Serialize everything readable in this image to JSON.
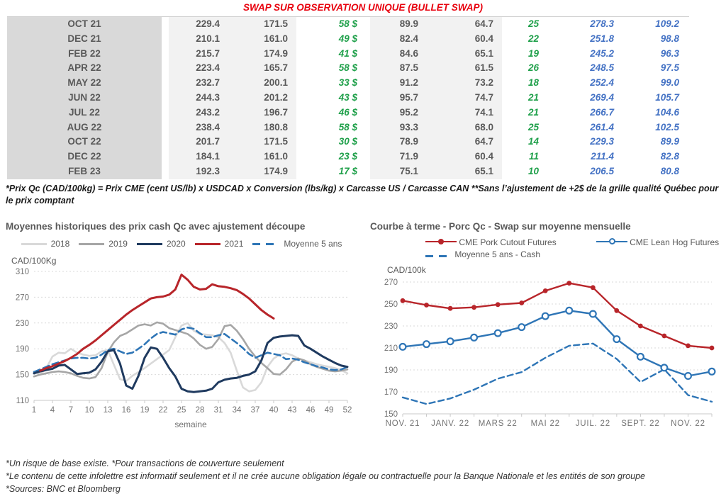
{
  "header": {
    "title": "SWAP SUR OBSERVATION UNIQUE (BULLET SWAP)"
  },
  "colors": {
    "title_red": "#e8000d",
    "table_green": "#1fa04a",
    "table_blue": "#4472c4",
    "row_label_bg": "#d9d9d9",
    "num_block_bg": "#f2f2f2",
    "line_2018": "#d9d9d9",
    "line_2019": "#a6a6a6",
    "line_2020": "#1f3a5f",
    "line_2021": "#b8252a",
    "line_blue": "#2e75b6",
    "grid": "#d9d9d9",
    "axis_text": "#737373"
  },
  "table": {
    "rows": [
      [
        "OCT 21",
        "229.4",
        "171.5",
        "58 $",
        "89.9",
        "64.7",
        "25",
        "278.3",
        "109.2"
      ],
      [
        "DEC 21",
        "210.1",
        "161.0",
        "49 $",
        "82.4",
        "60.4",
        "22",
        "251.8",
        "98.8"
      ],
      [
        "FEB 22",
        "215.7",
        "174.9",
        "41 $",
        "84.6",
        "65.1",
        "19",
        "245.2",
        "96.3"
      ],
      [
        "APR 22",
        "223.4",
        "165.7",
        "58 $",
        "87.5",
        "61.5",
        "26",
        "248.5",
        "97.5"
      ],
      [
        "MAY 22",
        "232.7",
        "200.1",
        "33 $",
        "91.2",
        "73.2",
        "18",
        "252.4",
        "99.0"
      ],
      [
        "JUN 22",
        "244.3",
        "201.2",
        "43 $",
        "95.7",
        "74.7",
        "21",
        "269.4",
        "105.7"
      ],
      [
        "JUL 22",
        "243.2",
        "196.7",
        "46 $",
        "95.2",
        "74.1",
        "21",
        "266.7",
        "104.6"
      ],
      [
        "AUG 22",
        "238.4",
        "180.8",
        "58 $",
        "93.3",
        "68.0",
        "25",
        "261.4",
        "102.5"
      ],
      [
        "OCT 22",
        "201.7",
        "171.5",
        "30 $",
        "78.9",
        "64.7",
        "14",
        "229.3",
        "89.9"
      ],
      [
        "DEC 22",
        "184.1",
        "161.0",
        "23 $",
        "71.9",
        "60.4",
        "11",
        "211.4",
        "82.8"
      ],
      [
        "FEB 23",
        "192.3",
        "174.9",
        "17 $",
        "75.1",
        "65.1",
        "10",
        "206.5",
        "80.8"
      ]
    ],
    "footnote": "*Prix Qc (CAD/100kg) = Prix CME (cent US/lb) x USDCAD x Conversion (lbs/kg) x Carcasse US / Carcasse CAN **Sans l’ajustement de +2$ de la grille qualité Québec pour le prix comptant"
  },
  "chart_data": [
    {
      "type": "line",
      "title": "Moyennes historiques des prix cash Qc avec ajustement découpe",
      "unit": "CAD/100Kg",
      "xlabel": "semaine",
      "ylim": [
        110,
        310
      ],
      "yticks": [
        110,
        150,
        190,
        230,
        270,
        310
      ],
      "xticks": [
        1,
        4,
        7,
        10,
        13,
        16,
        19,
        22,
        25,
        28,
        31,
        34,
        37,
        40,
        43,
        46,
        49,
        52
      ],
      "series": [
        {
          "name": "2018",
          "color_key": "line_2018",
          "x_start": 1,
          "values": [
            155,
            150,
            160,
            178,
            184,
            183,
            190,
            184,
            181,
            179,
            180,
            186,
            188,
            165,
            143,
            140,
            148,
            154,
            160,
            167,
            174,
            181,
            188,
            208,
            226,
            230,
            218,
            213,
            212,
            211,
            208,
            199,
            184,
            156,
            130,
            124,
            126,
            138,
            162,
            175,
            181,
            183,
            180,
            175,
            172,
            169,
            166,
            164,
            162,
            160,
            157,
            152
          ]
        },
        {
          "name": "2019",
          "color_key": "line_2019",
          "x_start": 1,
          "values": [
            147,
            150,
            152,
            154,
            155,
            154,
            152,
            148,
            145,
            144,
            146,
            160,
            185,
            200,
            210,
            214,
            220,
            226,
            228,
            226,
            231,
            229,
            222,
            219,
            216,
            213,
            206,
            196,
            190,
            193,
            205,
            225,
            227,
            218,
            205,
            190,
            178,
            168,
            160,
            151,
            150,
            158,
            170,
            175,
            172,
            166,
            162,
            159,
            156,
            155,
            156,
            158
          ]
        },
        {
          "name": "2020",
          "color_key": "line_2020",
          "x_start": 1,
          "values": [
            152,
            155,
            157,
            159,
            164,
            165,
            158,
            151,
            152,
            153,
            158,
            170,
            186,
            188,
            167,
            133,
            128,
            148,
            176,
            192,
            190,
            176,
            160,
            147,
            128,
            124,
            123,
            124,
            125,
            128,
            138,
            142,
            144,
            145,
            148,
            150,
            155,
            172,
            199,
            207,
            209,
            210,
            211,
            210,
            195,
            190,
            184,
            178,
            173,
            168,
            164,
            162
          ]
        },
        {
          "name": "2021",
          "color_key": "line_2021",
          "x_start": 2,
          "values": [
            156,
            160,
            163,
            167,
            171,
            176,
            182,
            190,
            196,
            203,
            211,
            219,
            227,
            235,
            243,
            250,
            256,
            262,
            268,
            270,
            271,
            274,
            282,
            305,
            297,
            286,
            282,
            283,
            290,
            287,
            286,
            284,
            281,
            275,
            268,
            259,
            250,
            243,
            237
          ]
        },
        {
          "name": "Moyenne 5 ans",
          "color_key": "line_blue",
          "dashed": true,
          "x_start": 1,
          "values": [
            154,
            158,
            162,
            166,
            169,
            172,
            175,
            176,
            176,
            175,
            176,
            181,
            188,
            190,
            186,
            182,
            184,
            190,
            197,
            206,
            213,
            216,
            214,
            212,
            220,
            223,
            221,
            214,
            208,
            208,
            211,
            213,
            206,
            199,
            191,
            182,
            176,
            180,
            184,
            182,
            180,
            174,
            175,
            173,
            169,
            166,
            163,
            161,
            158,
            157,
            158,
            162
          ]
        }
      ]
    },
    {
      "type": "line",
      "title": "Courbe à terme - Porc Qc - Swap sur moyenne mensuelle",
      "unit": "CAD/100k",
      "ylim": [
        150,
        270
      ],
      "yticks": [
        150,
        170,
        190,
        210,
        230,
        250,
        270
      ],
      "n_points": 14,
      "x_tick_labels": [
        "NOV. 21",
        "JANV. 22",
        "MARS 22",
        "MAI 22",
        "JUIL. 22",
        "SEPT. 22",
        "NOV. 22"
      ],
      "x_tick_indices": [
        0,
        2,
        4,
        6,
        8,
        10,
        12
      ],
      "series": [
        {
          "name": "CME Pork Cutout Futures",
          "color_key": "line_2021",
          "marker": "filled",
          "values": [
            253,
            249,
            246,
            247,
            249.5,
            251,
            262,
            269,
            265,
            244,
            230,
            221,
            212,
            210
          ]
        },
        {
          "name": "CME Lean Hog Futures",
          "color_key": "line_blue",
          "marker": "open",
          "values": [
            211,
            213.5,
            216,
            219.5,
            223.5,
            229,
            239,
            244,
            241,
            218,
            202,
            192,
            184.5,
            188.5
          ]
        },
        {
          "name": "Moyenne 5 ans - Cash",
          "color_key": "line_blue",
          "dashed": true,
          "values": [
            165,
            159,
            164,
            172,
            182,
            188,
            201,
            212,
            214,
            200,
            179,
            190.5,
            167,
            161
          ]
        }
      ]
    }
  ],
  "footer": {
    "lines": [
      "*Un risque de base existe. *Pour transactions de couverture seulement",
      "*Le contenu de cette infolettre est informatif seulement et il ne crée aucune obligation légale ou contractuelle pour la Banque Nationale et les entités de son groupe",
      "*Sources: BNC et Bloomberg"
    ]
  }
}
